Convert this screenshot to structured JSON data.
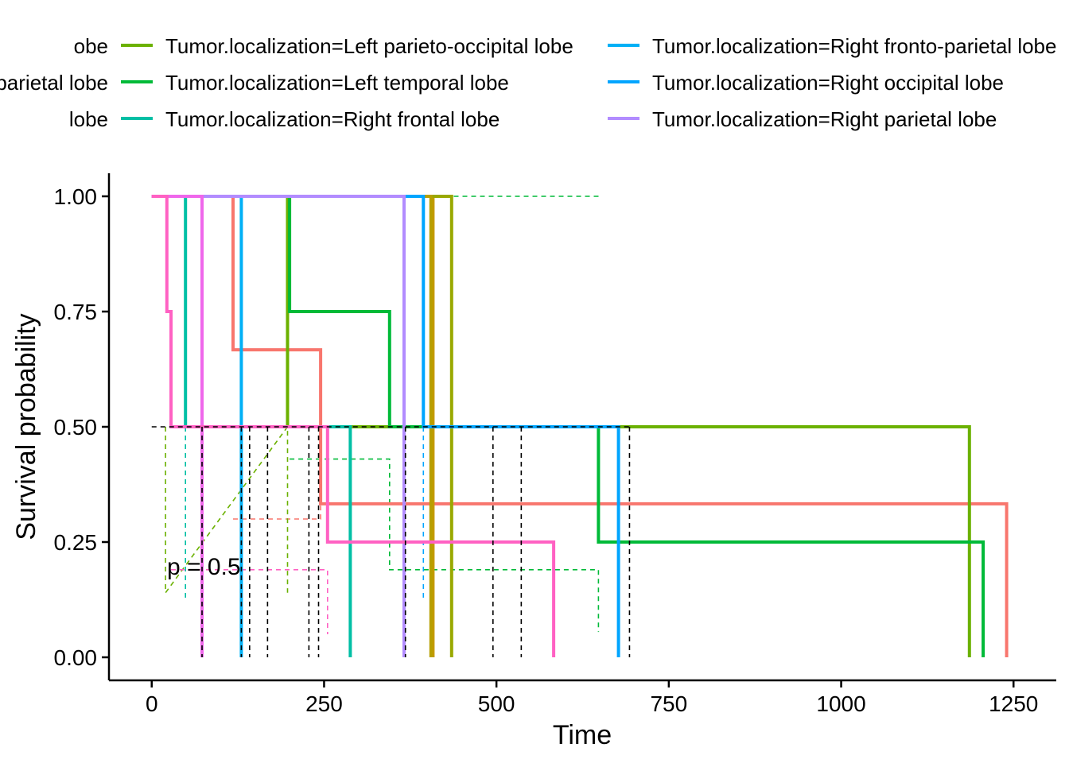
{
  "chart_data": {
    "type": "line",
    "subtype": "kaplan-meier step",
    "title": "",
    "xlabel": "Time",
    "ylabel": "Survival probability",
    "xlim": [
      -62,
      1312
    ],
    "ylim": [
      -0.05,
      1.05
    ],
    "x_ticks": [
      0,
      250,
      500,
      750,
      1000,
      1250
    ],
    "x_tick_labels": [
      "0",
      "250",
      "500",
      "750",
      "1000",
      "1250"
    ],
    "y_ticks": [
      0,
      0.25,
      0.5,
      0.75,
      1
    ],
    "y_tick_labels": [
      "0.00",
      "0.25",
      "0.50",
      "0.75",
      "1.00"
    ],
    "grid": false,
    "legend_position": "top",
    "annotation": "p = 0.5",
    "median_line_y": 0.5,
    "median_drops_x": [
      73,
      130,
      142,
      168,
      228,
      242,
      368,
      495,
      536,
      693
    ],
    "legend": {
      "left_cut": [
        "obe",
        "parietal lobe",
        " lobe"
      ],
      "items": [
        {
          "label": "Tumor.localization=Left parieto-occipital lobe",
          "color": "#6BB100"
        },
        {
          "label": "Tumor.localization=Left temporal lobe",
          "color": "#00BA38"
        },
        {
          "label": "Tumor.localization=Right frontal lobe",
          "color": "#00BFA5"
        },
        {
          "label": "Tumor.localization=Right fronto-parietal lobe",
          "color": "#00B0F6"
        },
        {
          "label": "Tumor.localization=Right occipital lobe",
          "color": "#00A5FF"
        },
        {
          "label": "Tumor.localization=Right parietal lobe",
          "color": "#B28CFF"
        }
      ]
    },
    "series": [
      {
        "color": "#F8766D",
        "steps": [
          [
            0,
            1
          ],
          [
            118,
            1
          ],
          [
            118,
            0.667
          ],
          [
            245,
            0.667
          ],
          [
            245,
            0.333
          ],
          [
            1240,
            0.333
          ],
          [
            1240,
            0
          ]
        ],
        "ci": [
          [
            118,
            0.3
          ],
          [
            245,
            0.3
          ],
          [
            245,
            0.5
          ],
          [
            118,
            0.5
          ]
        ]
      },
      {
        "color": "#C49A00",
        "steps": [
          [
            0,
            1
          ],
          [
            408,
            1
          ],
          [
            408,
            0
          ]
        ],
        "ci": []
      },
      {
        "color": "#99A800",
        "steps": [
          [
            0,
            1
          ],
          [
            435,
            1
          ],
          [
            435,
            0
          ]
        ],
        "ci": []
      },
      {
        "color": "#B79F00",
        "steps": [
          [
            0,
            1
          ],
          [
            405,
            1
          ],
          [
            405,
            0
          ]
        ],
        "ci": []
      },
      {
        "color": "#6BB100",
        "steps": [
          [
            0,
            1
          ],
          [
            197,
            1
          ],
          [
            197,
            0.5
          ],
          [
            1186,
            0.5
          ],
          [
            1186,
            0
          ]
        ],
        "ci": [
          [
            20,
            0.5
          ],
          [
            20,
            0.14
          ],
          [
            197,
            0.5
          ],
          [
            197,
            0.14
          ]
        ]
      },
      {
        "color": "#00BA38",
        "steps": [
          [
            0,
            1
          ],
          [
            200,
            1
          ],
          [
            200,
            0.75
          ],
          [
            345,
            0.75
          ],
          [
            345,
            0.5
          ],
          [
            648,
            0.5
          ],
          [
            648,
            0.25
          ],
          [
            1206,
            0.25
          ],
          [
            1206,
            0
          ]
        ],
        "ci": [
          [
            200,
            0.43
          ],
          [
            345,
            0.43
          ],
          [
            345,
            0.19
          ],
          [
            648,
            0.19
          ],
          [
            648,
            0.055
          ]
        ],
        "ci_upper": [
          [
            400,
            1
          ],
          [
            650,
            1
          ]
        ]
      },
      {
        "color": "#00BFA5",
        "steps": [
          [
            0,
            1
          ],
          [
            49,
            1
          ],
          [
            49,
            0.5
          ],
          [
            288,
            0.5
          ],
          [
            288,
            0
          ]
        ],
        "ci": [
          [
            49,
            0.5
          ],
          [
            49,
            0.125
          ]
        ]
      },
      {
        "color": "#00B0F6",
        "steps": [
          [
            0,
            1
          ],
          [
            130,
            1
          ],
          [
            130,
            0
          ]
        ],
        "ci": []
      },
      {
        "color": "#00A5FF",
        "steps": [
          [
            0,
            1
          ],
          [
            394,
            1
          ],
          [
            394,
            0.5
          ],
          [
            677,
            0.5
          ],
          [
            677,
            0
          ]
        ],
        "ci": [
          [
            394,
            0.5
          ],
          [
            394,
            0.125
          ]
        ]
      },
      {
        "color": "#B28CFF",
        "steps": [
          [
            0,
            1
          ],
          [
            366,
            1
          ],
          [
            366,
            0
          ]
        ],
        "ci": []
      },
      {
        "color": "#EF67EB",
        "steps": [
          [
            0,
            1
          ],
          [
            73,
            1
          ],
          [
            73,
            0
          ]
        ],
        "ci": []
      },
      {
        "color": "#FF61C3",
        "steps": [
          [
            0,
            1
          ],
          [
            22,
            1
          ],
          [
            22,
            0.75
          ],
          [
            28,
            0.75
          ],
          [
            28,
            0.5
          ],
          [
            255,
            0.5
          ],
          [
            255,
            0.25
          ],
          [
            583,
            0.25
          ],
          [
            583,
            0
          ]
        ],
        "ci": [
          [
            28,
            0.19
          ],
          [
            255,
            0.19
          ],
          [
            255,
            0.05
          ]
        ]
      }
    ]
  }
}
